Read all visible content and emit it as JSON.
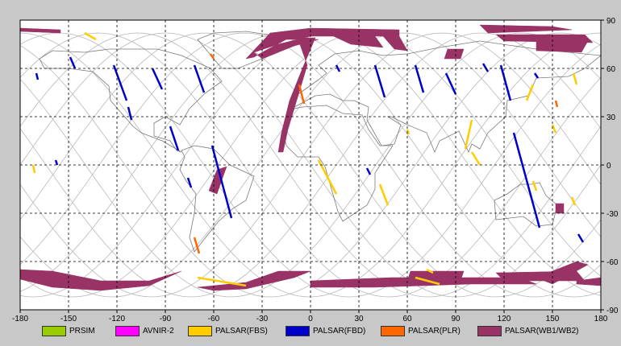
{
  "map": {
    "x_ticks": [
      "-180",
      "-150",
      "-120",
      "-90",
      "-60",
      "-30",
      "0",
      "30",
      "60",
      "90",
      "120",
      "150",
      "180"
    ],
    "y_ticks": [
      "90",
      "60",
      "30",
      "0",
      "-30",
      "-60",
      "-90"
    ],
    "colors": {
      "ocean": "#ffffff",
      "coast": "#7a7a7a",
      "orbit": "#b8b8b8",
      "grid": "#000000"
    }
  },
  "legend": [
    {
      "label": "PRSIM",
      "color": "#99cc00"
    },
    {
      "label": "AVNIR-2",
      "color": "#ff00ff"
    },
    {
      "label": "PALSAR(FBS)",
      "color": "#ffcc00"
    },
    {
      "label": "PALSAR(FBD)",
      "color": "#0000cc"
    },
    {
      "label": "PALSAR(PLR)",
      "color": "#ff6600"
    },
    {
      "label": "PALSAR(WB1/WB2)",
      "color": "#993366"
    }
  ],
  "chart_data": {
    "type": "map",
    "projection": "equirectangular",
    "xlim": [
      -180,
      180
    ],
    "ylim": [
      -90,
      90
    ],
    "grid": true,
    "legend_position": "bottom",
    "swaths": {
      "PALSAR(WB1/WB2)": [
        {
          "poly": [
            [
              -180,
              85
            ],
            [
              -155,
              84
            ],
            [
              -155,
              82
            ],
            [
              -180,
              83
            ]
          ]
        },
        {
          "poly": [
            [
              -25,
              82
            ],
            [
              0,
              85
            ],
            [
              55,
              84
            ],
            [
              55,
              80
            ],
            [
              0,
              80
            ],
            [
              -20,
              75
            ],
            [
              -35,
              70
            ],
            [
              -30,
              66
            ],
            [
              -10,
              74
            ],
            [
              5,
              78
            ],
            [
              -15,
              78
            ],
            [
              -30,
              70
            ],
            [
              -35,
              67
            ],
            [
              -40,
              66
            ]
          ]
        },
        {
          "poly": [
            [
              -8,
              79
            ],
            [
              3,
              79
            ],
            [
              -5,
              60
            ],
            [
              -13,
              40
            ],
            [
              -18,
              20
            ],
            [
              -20,
              8
            ],
            [
              -17,
              8
            ],
            [
              -14,
              22
            ],
            [
              -8,
              42
            ],
            [
              -2,
              62
            ]
          ]
        },
        {
          "poly": [
            [
              10,
              82
            ],
            [
              40,
              80
            ],
            [
              45,
              73
            ],
            [
              25,
              75
            ]
          ]
        },
        {
          "poly": [
            [
              45,
              80
            ],
            [
              55,
              80
            ],
            [
              60,
              71
            ],
            [
              52,
              72
            ]
          ]
        },
        {
          "poly": [
            [
              85,
              72
            ],
            [
              95,
              72
            ],
            [
              93,
              66
            ],
            [
              83,
              66
            ]
          ]
        },
        {
          "poly": [
            [
              105,
              87
            ],
            [
              150,
              86
            ],
            [
              162,
              84
            ],
            [
              110,
              82
            ]
          ]
        },
        {
          "poly": [
            [
              115,
              81
            ],
            [
              170,
              81
            ],
            [
              175,
              76
            ],
            [
              120,
              77
            ]
          ]
        },
        {
          "poly": [
            [
              140,
              77
            ],
            [
              172,
              77
            ],
            [
              168,
              70
            ],
            [
              140,
              71
            ]
          ]
        },
        {
          "poly": [
            [
              -58,
              -3
            ],
            [
              -52,
              -1
            ],
            [
              -58,
              -18
            ],
            [
              -63,
              -16
            ]
          ]
        },
        {
          "poly": [
            [
              152,
              -24
            ],
            [
              157,
              -24
            ],
            [
              157,
              -30
            ],
            [
              152,
              -30
            ]
          ]
        },
        {
          "poly": [
            [
              -180,
              -65
            ],
            [
              -160,
              -66
            ],
            [
              -130,
              -72
            ],
            [
              -100,
              -72
            ],
            [
              -80,
              -66
            ],
            [
              -100,
              -75
            ],
            [
              -130,
              -78
            ],
            [
              -160,
              -76
            ],
            [
              -180,
              -71
            ]
          ]
        },
        {
          "poly": [
            [
              -20,
              -66
            ],
            [
              0,
              -66
            ],
            [
              -10,
              -70
            ],
            [
              -40,
              -77
            ],
            [
              -60,
              -78
            ],
            [
              -70,
              -76
            ],
            [
              -40,
              -73
            ]
          ]
        },
        {
          "poly": [
            [
              0,
              -72
            ],
            [
              50,
              -70
            ],
            [
              100,
              -70
            ],
            [
              130,
              -70
            ],
            [
              140,
              -74
            ],
            [
              100,
              -74
            ],
            [
              40,
              -76
            ],
            [
              0,
              -76
            ]
          ]
        },
        {
          "poly": [
            [
              62,
              -66
            ],
            [
              95,
              -66
            ],
            [
              93,
              -72
            ],
            [
              60,
              -72
            ]
          ]
        },
        {
          "poly": [
            [
              115,
              -67
            ],
            [
              165,
              -66
            ],
            [
              170,
              -72
            ],
            [
              120,
              -72
            ]
          ]
        },
        {
          "poly": [
            [
              140,
              -70
            ],
            [
              165,
              -60
            ],
            [
              172,
              -62
            ],
            [
              150,
              -74
            ]
          ]
        },
        {
          "poly": [
            [
              165,
              -72
            ],
            [
              180,
              -70
            ],
            [
              180,
              -75
            ],
            [
              165,
              -74
            ]
          ]
        }
      ],
      "PALSAR(FBD)": [
        {
          "line": [
            [
              -149,
              67
            ],
            [
              -146,
              60
            ]
          ]
        },
        {
          "line": [
            [
              -170,
              57
            ],
            [
              -169,
              53
            ]
          ]
        },
        {
          "line": [
            [
              -122,
              62
            ],
            [
              -114,
              40
            ]
          ]
        },
        {
          "line": [
            [
              -113,
              36
            ],
            [
              -111,
              28
            ]
          ]
        },
        {
          "line": [
            [
              -98,
              60
            ],
            [
              -92,
              47
            ]
          ]
        },
        {
          "line": [
            [
              -87,
              24
            ],
            [
              -82,
              9
            ]
          ]
        },
        {
          "line": [
            [
              -72,
              62
            ],
            [
              -66,
              45
            ]
          ]
        },
        {
          "line": [
            [
              -61,
              12
            ],
            [
              -49,
              -33
            ]
          ]
        },
        {
          "line": [
            [
              -76,
              -8
            ],
            [
              -74,
              -14
            ]
          ]
        },
        {
          "line": [
            [
              -158,
              3
            ],
            [
              -157,
              0
            ]
          ]
        },
        {
          "line": [
            [
              16,
              62
            ],
            [
              18,
              58
            ]
          ]
        },
        {
          "line": [
            [
              40,
              62
            ],
            [
              46,
              42
            ]
          ]
        },
        {
          "line": [
            [
              65,
              62
            ],
            [
              70,
              45
            ]
          ]
        },
        {
          "line": [
            [
              84,
              57
            ],
            [
              90,
              44
            ]
          ]
        },
        {
          "line": [
            [
              118,
              62
            ],
            [
              124,
              40
            ]
          ]
        },
        {
          "line": [
            [
              126,
              20
            ],
            [
              142,
              -39
            ]
          ]
        },
        {
          "line": [
            [
              139,
              57
            ],
            [
              141,
              54
            ]
          ]
        },
        {
          "line": [
            [
              166,
              -43
            ],
            [
              169,
              -48
            ]
          ]
        },
        {
          "line": [
            [
              35,
              -2
            ],
            [
              37,
              -6
            ]
          ]
        },
        {
          "line": [
            [
              107,
              63
            ],
            [
              110,
              58
            ]
          ]
        }
      ],
      "PALSAR(FBS)": [
        {
          "line": [
            [
              -140,
              82
            ],
            [
              -133,
              78
            ]
          ]
        },
        {
          "line": [
            [
              -172,
              0
            ],
            [
              -171,
              -5
            ]
          ]
        },
        {
          "line": [
            [
              5,
              3
            ],
            [
              16,
              -18
            ]
          ]
        },
        {
          "line": [
            [
              43,
              -12
            ],
            [
              48,
              -25
            ]
          ]
        },
        {
          "line": [
            [
              -70,
              -70
            ],
            [
              -40,
              -75
            ]
          ]
        },
        {
          "line": [
            [
              65,
              -70
            ],
            [
              80,
              -74
            ]
          ]
        },
        {
          "line": [
            [
              72,
              -65
            ],
            [
              76,
              -67
            ]
          ]
        },
        {
          "line": [
            [
              100,
              28
            ],
            [
              96,
              10
            ]
          ]
        },
        {
          "line": [
            [
              105,
              0
            ],
            [
              100,
              8
            ]
          ]
        },
        {
          "line": [
            [
              138,
              50
            ],
            [
              134,
              40
            ]
          ]
        },
        {
          "line": [
            [
              163,
              57
            ],
            [
              165,
              50
            ]
          ]
        },
        {
          "line": [
            [
              150,
              25
            ],
            [
              152,
              20
            ]
          ]
        },
        {
          "line": [
            [
              162,
              -20
            ],
            [
              164,
              -25
            ]
          ]
        },
        {
          "line": [
            [
              138,
              -10
            ],
            [
              140,
              -16
            ]
          ]
        },
        {
          "line": [
            [
              60,
              22
            ],
            [
              61,
              19
            ]
          ]
        }
      ],
      "PALSAR(PLR)": [
        {
          "line": [
            [
              -62,
              69
            ],
            [
              -60,
              66
            ]
          ]
        },
        {
          "line": [
            [
              -7,
              50
            ],
            [
              -4,
              38
            ]
          ]
        },
        {
          "line": [
            [
              -72,
              -45
            ],
            [
              -69,
              -55
            ]
          ]
        },
        {
          "line": [
            [
              152,
              40
            ],
            [
              153,
              36
            ]
          ]
        }
      ]
    }
  }
}
